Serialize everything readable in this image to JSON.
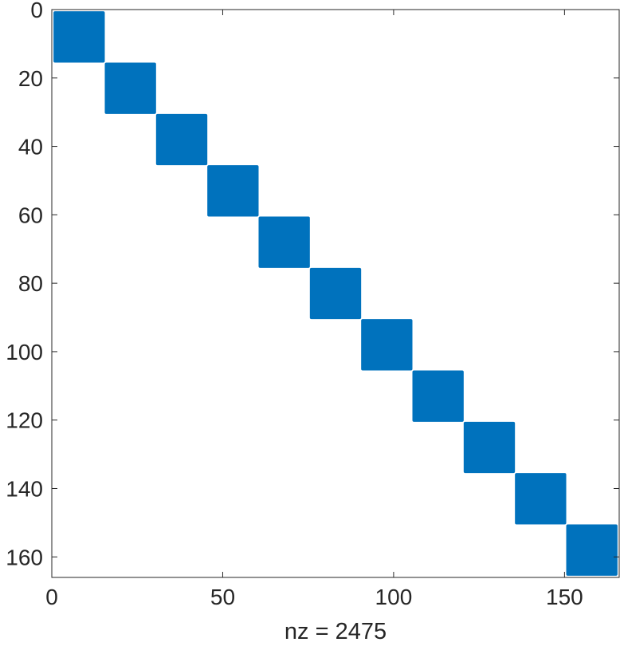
{
  "chart_data": {
    "type": "heatmap",
    "subtype": "sparsity-pattern",
    "title": "",
    "xlabel": "nz = 2475",
    "ylabel": "",
    "matrix_size": 165,
    "block_size": 15,
    "block_count": 11,
    "nonzeros": 2475,
    "blocks": [
      {
        "rows": [
          1,
          15
        ],
        "cols": [
          1,
          15
        ]
      },
      {
        "rows": [
          16,
          30
        ],
        "cols": [
          16,
          30
        ]
      },
      {
        "rows": [
          31,
          45
        ],
        "cols": [
          31,
          45
        ]
      },
      {
        "rows": [
          46,
          60
        ],
        "cols": [
          46,
          60
        ]
      },
      {
        "rows": [
          61,
          75
        ],
        "cols": [
          61,
          75
        ]
      },
      {
        "rows": [
          76,
          90
        ],
        "cols": [
          76,
          90
        ]
      },
      {
        "rows": [
          91,
          105
        ],
        "cols": [
          91,
          105
        ]
      },
      {
        "rows": [
          106,
          120
        ],
        "cols": [
          106,
          120
        ]
      },
      {
        "rows": [
          121,
          135
        ],
        "cols": [
          121,
          135
        ]
      },
      {
        "rows": [
          136,
          150
        ],
        "cols": [
          136,
          150
        ]
      },
      {
        "rows": [
          151,
          165
        ],
        "cols": [
          151,
          165
        ]
      }
    ],
    "xlim": [
      0,
      166
    ],
    "ylim": [
      0,
      166
    ],
    "y_direction": "reversed",
    "x_ticks": [
      0,
      50,
      100,
      150
    ],
    "y_ticks": [
      0,
      20,
      40,
      60,
      80,
      100,
      120,
      140,
      160
    ],
    "grid": false,
    "legend": "none",
    "colors": {
      "marker": "#0072BD",
      "axis": "#262626",
      "background": "#ffffff"
    }
  }
}
